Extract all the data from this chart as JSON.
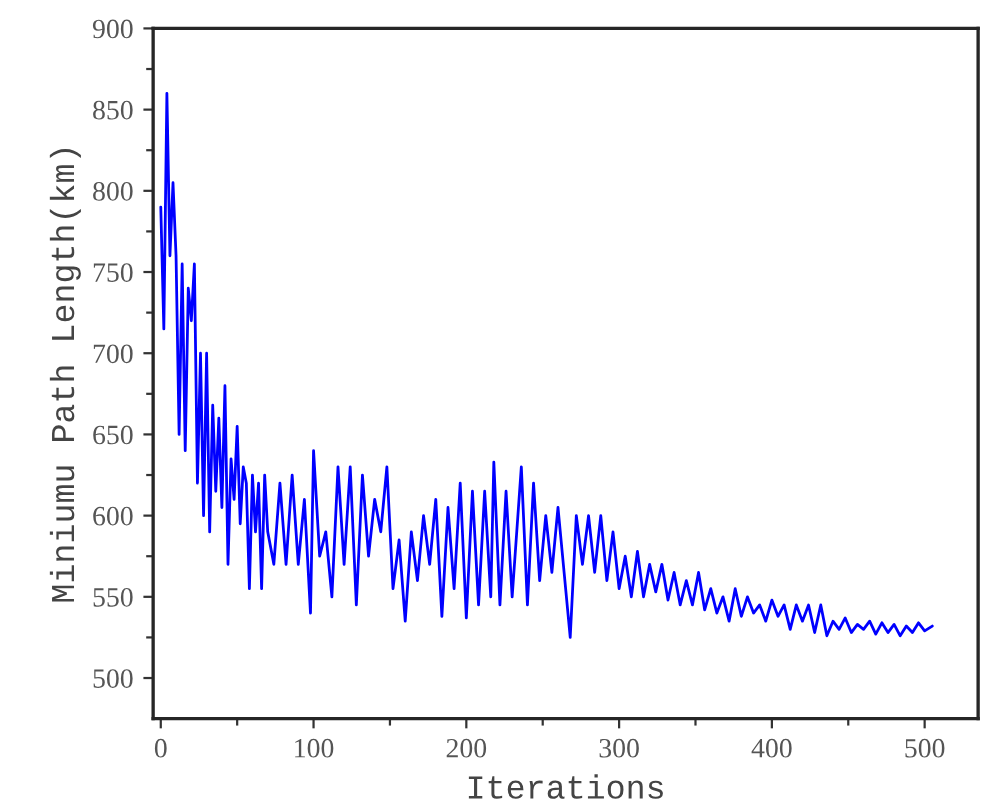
{
  "chart_data": {
    "type": "line",
    "xlabel": "Iterations",
    "ylabel": "Miniumu Path Length(km)",
    "xlim": [
      -5,
      535
    ],
    "ylim": [
      475,
      900
    ],
    "xticks": [
      0,
      {
        "value": 50,
        "label": null
      },
      100,
      {
        "value": 150,
        "label": null
      },
      200,
      {
        "value": 250,
        "label": null
      },
      300,
      {
        "value": 350,
        "label": null
      },
      400,
      {
        "value": 450,
        "label": null
      },
      500
    ],
    "yticks": [
      500,
      {
        "value": 525,
        "label": null
      },
      550,
      {
        "value": 575,
        "label": null
      },
      600,
      {
        "value": 625,
        "label": null
      },
      650,
      {
        "value": 675,
        "label": null
      },
      700,
      {
        "value": 725,
        "label": null
      },
      750,
      {
        "value": 775,
        "label": null
      },
      800,
      {
        "value": 825,
        "label": null
      },
      850,
      {
        "value": 875,
        "label": null
      },
      900
    ],
    "grid": false,
    "legend": false,
    "marker": "none",
    "line_style": "solid",
    "series": [
      {
        "color": "#0000ff",
        "x": [
          0,
          2,
          4,
          6,
          8,
          10,
          12,
          14,
          16,
          18,
          20,
          22,
          24,
          26,
          28,
          30,
          32,
          34,
          36,
          38,
          40,
          42,
          44,
          46,
          48,
          50,
          52,
          54,
          56,
          58,
          60,
          62,
          64,
          66,
          68,
          70,
          74,
          78,
          82,
          86,
          90,
          94,
          98,
          100,
          104,
          108,
          112,
          116,
          120,
          124,
          128,
          132,
          136,
          140,
          144,
          148,
          152,
          156,
          160,
          164,
          168,
          172,
          176,
          180,
          184,
          188,
          192,
          196,
          200,
          204,
          208,
          212,
          216,
          218,
          222,
          226,
          230,
          236,
          240,
          244,
          248,
          252,
          256,
          260,
          264,
          268,
          272,
          276,
          280,
          284,
          288,
          292,
          296,
          300,
          304,
          308,
          312,
          316,
          320,
          324,
          328,
          332,
          336,
          340,
          344,
          348,
          352,
          356,
          360,
          364,
          368,
          372,
          376,
          380,
          384,
          388,
          392,
          396,
          400,
          404,
          408,
          412,
          416,
          420,
          424,
          428,
          432,
          436,
          440,
          444,
          448,
          452,
          456,
          460,
          464,
          468,
          472,
          476,
          480,
          484,
          488,
          492,
          496,
          500,
          505
        ],
        "values": [
          790,
          715,
          860,
          760,
          805,
          760,
          650,
          755,
          640,
          740,
          720,
          755,
          620,
          700,
          600,
          700,
          590,
          668,
          615,
          660,
          605,
          680,
          570,
          635,
          610,
          655,
          595,
          630,
          620,
          555,
          625,
          590,
          620,
          555,
          625,
          590,
          570,
          620,
          570,
          625,
          570,
          610,
          540,
          640,
          575,
          590,
          550,
          630,
          570,
          630,
          545,
          625,
          575,
          610,
          590,
          630,
          555,
          585,
          535,
          590,
          560,
          600,
          570,
          610,
          538,
          605,
          555,
          620,
          537,
          615,
          545,
          615,
          550,
          633,
          545,
          615,
          550,
          630,
          545,
          620,
          560,
          600,
          565,
          605,
          565,
          525,
          600,
          570,
          600,
          565,
          600,
          560,
          590,
          555,
          575,
          550,
          578,
          550,
          570,
          553,
          570,
          548,
          565,
          545,
          560,
          545,
          565,
          542,
          555,
          540,
          550,
          535,
          555,
          538,
          550,
          540,
          545,
          535,
          548,
          538,
          545,
          530,
          545,
          535,
          545,
          528,
          545,
          526,
          535,
          530,
          537,
          528,
          533,
          530,
          535,
          527,
          534,
          528,
          533,
          526,
          532,
          528,
          534,
          529,
          532
        ]
      }
    ]
  }
}
